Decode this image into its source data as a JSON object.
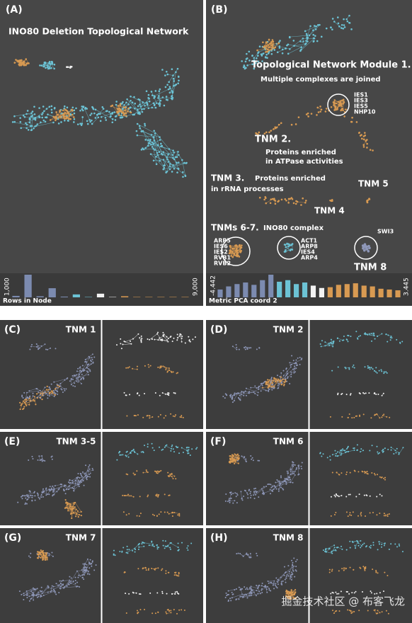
{
  "panels": [
    {
      "label": "(A)",
      "title": "INO80 Deletion Topological Network",
      "histogram": {
        "label": "Rows in Node",
        "min": "1,000",
        "max": "9,000",
        "values": [
          4,
          62,
          3,
          25,
          2,
          8,
          1,
          10,
          1,
          3,
          1,
          1,
          1,
          1,
          1
        ]
      }
    },
    {
      "label": "(B)",
      "annotations": [
        "Topological Network Module 1.",
        "Multiple complexes are joined",
        "IES1",
        "IES3",
        "IES5",
        "NHP10",
        "TNM 2.",
        "Proteins enriched",
        "in ATPase  activities",
        "TNM 3.",
        "Proteins enriched",
        "in rRNA processes",
        "TNM 5",
        "TNM 4",
        "TNMs 6-7.",
        "INO80 complex",
        "ARP5",
        "IES6",
        "IES2",
        "RVB1",
        "RVB2",
        "ACT1",
        "ARP8",
        "IES4",
        "ARP4",
        "SWI3",
        "TNM 8"
      ],
      "histogram": {
        "label": "Metric PCA coord 2",
        "min": "-4.442",
        "max": "3.445",
        "values": [
          20,
          28,
          34,
          38,
          32,
          44,
          58,
          40,
          44,
          34,
          38,
          30,
          24,
          26,
          32,
          34,
          36,
          30,
          28,
          22,
          20,
          18
        ]
      }
    }
  ],
  "small_panels": [
    {
      "label": "(C)",
      "title": "TNM 1"
    },
    {
      "label": "(D)",
      "title": "TNM 2"
    },
    {
      "label": "(E)",
      "title": "TNM 3-5"
    },
    {
      "label": "(F)",
      "title": "TNM 6"
    },
    {
      "label": "(G)",
      "title": "TNM 7"
    },
    {
      "label": "(H)",
      "title": "TNM 8"
    }
  ],
  "watermark": "掘金技术社区 @ 布客飞龙"
}
